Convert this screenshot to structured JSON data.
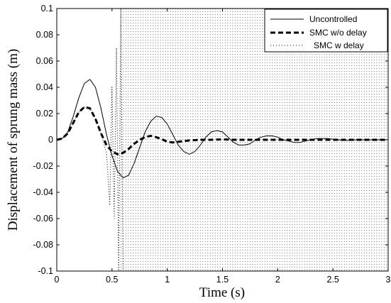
{
  "chart_data": {
    "type": "line",
    "xlabel": "Time (s)",
    "ylabel": "Displacement of sprung mass (m)",
    "xlim": [
      0,
      3
    ],
    "ylim": [
      -0.1,
      0.1
    ],
    "xticks": [
      0,
      0.5,
      1,
      1.5,
      2,
      2.5,
      3
    ],
    "xtick_labels": [
      "0",
      "0.5",
      "1",
      "1.5",
      "2",
      "2.5",
      "3"
    ],
    "yticks": [
      -0.1,
      -0.08,
      -0.06,
      -0.04,
      -0.02,
      0,
      0.02,
      0.04,
      0.06,
      0.08,
      0.1
    ],
    "ytick_labels": [
      "-0.1",
      "-0.08",
      "-0.06",
      "-0.04",
      "-0.02",
      "0",
      "0.02",
      "0.04",
      "0.06",
      "0.08",
      "0.1"
    ],
    "grid": false,
    "legend_position": "top-right",
    "series": [
      {
        "name": "Uncontrolled",
        "style": "solid",
        "color": "#000000",
        "x": [
          0,
          0.05,
          0.1,
          0.15,
          0.2,
          0.25,
          0.3,
          0.35,
          0.4,
          0.45,
          0.5,
          0.55,
          0.6,
          0.65,
          0.7,
          0.75,
          0.8,
          0.85,
          0.9,
          0.95,
          1.0,
          1.05,
          1.1,
          1.15,
          1.2,
          1.25,
          1.3,
          1.35,
          1.4,
          1.45,
          1.5,
          1.55,
          1.6,
          1.65,
          1.7,
          1.75,
          1.8,
          1.85,
          1.9,
          1.95,
          2.0,
          2.05,
          2.1,
          2.15,
          2.2,
          2.25,
          2.3,
          2.35,
          2.4,
          2.45,
          2.5,
          2.55,
          2.6,
          2.65,
          2.7,
          2.75,
          2.8,
          2.85,
          2.9,
          2.95,
          3.0
        ],
        "y": [
          0,
          0.001,
          0.006,
          0.018,
          0.032,
          0.043,
          0.046,
          0.04,
          0.024,
          0.004,
          -0.012,
          -0.024,
          -0.029,
          -0.027,
          -0.018,
          -0.006,
          0.006,
          0.014,
          0.018,
          0.017,
          0.012,
          0.004,
          -0.004,
          -0.009,
          -0.011,
          -0.009,
          -0.004,
          0.002,
          0.006,
          0.007,
          0.006,
          0.002,
          -0.002,
          -0.004,
          -0.004,
          -0.003,
          0,
          0.002,
          0.003,
          0.003,
          0.002,
          0,
          -0.001,
          -0.002,
          -0.002,
          -0.001,
          0,
          0.001,
          0.001,
          0.001,
          0.0005,
          0,
          -0.0005,
          -0.0005,
          0,
          0,
          0,
          0,
          0,
          0,
          0
        ]
      },
      {
        "name": "SMC w/o delay",
        "style": "dashed",
        "color": "#000000",
        "x": [
          0,
          0.05,
          0.1,
          0.15,
          0.2,
          0.25,
          0.3,
          0.35,
          0.4,
          0.45,
          0.5,
          0.55,
          0.6,
          0.65,
          0.7,
          0.75,
          0.8,
          0.85,
          0.9,
          0.95,
          1.0,
          1.05,
          1.1,
          1.15,
          1.2,
          1.3,
          1.4,
          1.5,
          1.6,
          1.8,
          2.0,
          2.2,
          2.4,
          2.6,
          2.8,
          3.0
        ],
        "y": [
          0,
          0.001,
          0.005,
          0.013,
          0.021,
          0.025,
          0.024,
          0.016,
          0.005,
          -0.004,
          -0.009,
          -0.011,
          -0.01,
          -0.007,
          -0.003,
          0,
          0.002,
          0.003,
          0.002,
          0.0005,
          -0.0015,
          -0.002,
          -0.0015,
          -0.001,
          -0.0005,
          0,
          0,
          0.0003,
          0,
          0,
          0,
          0,
          0,
          0,
          0,
          0
        ]
      },
      {
        "name": "SMC w delay",
        "style": "dotted",
        "color": "#000000",
        "x": [
          0,
          0.05,
          0.1,
          0.15,
          0.2,
          0.25,
          0.3,
          0.35,
          0.4,
          0.45,
          0.48,
          0.5,
          0.52,
          0.54,
          0.56,
          0.58,
          0.6,
          3.0
        ],
        "y": [
          0,
          0.001,
          0.005,
          0.013,
          0.021,
          0.025,
          0.024,
          0.016,
          0.005,
          -0.01,
          -0.05,
          0.04,
          -0.06,
          0.07,
          -0.1,
          0.1,
          -0.1,
          -0.1
        ]
      }
    ]
  }
}
